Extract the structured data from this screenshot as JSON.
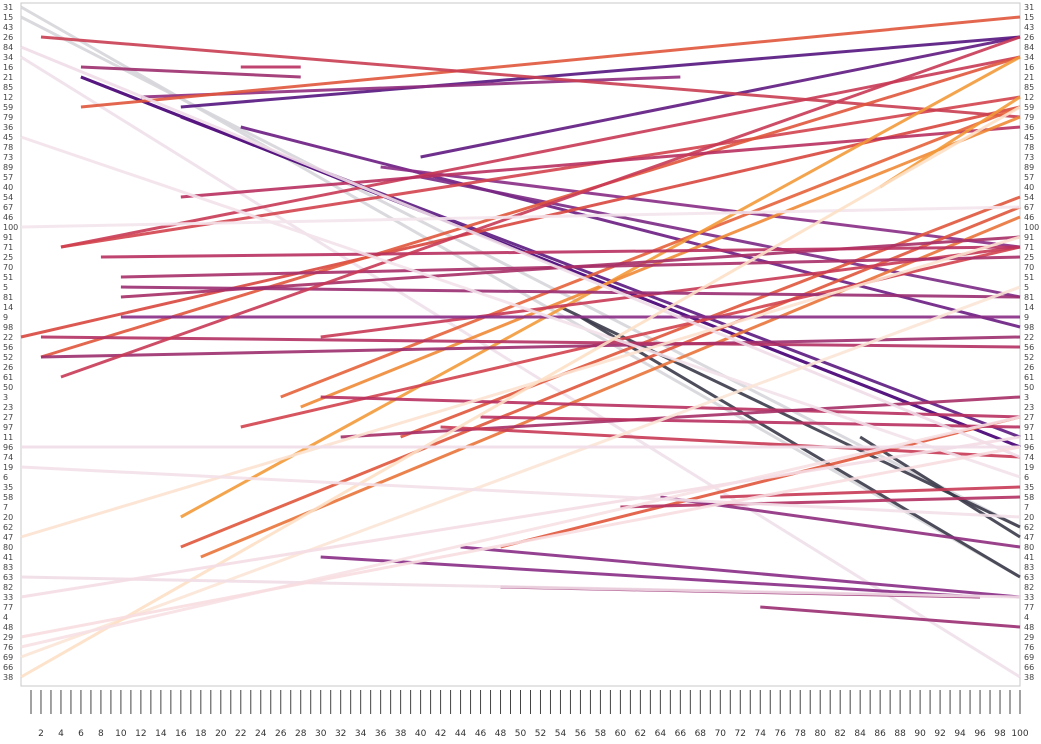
{
  "chart_data": {
    "type": "line",
    "title": "",
    "xlabel": "",
    "ylabel": "",
    "x_ticks_labeled": [
      2,
      4,
      6,
      8,
      10,
      12,
      14,
      16,
      18,
      20,
      22,
      24,
      26,
      28,
      30,
      32,
      34,
      36,
      38,
      40,
      42,
      44,
      46,
      48,
      50,
      52,
      54,
      56,
      58,
      60,
      62,
      64,
      66,
      68,
      70,
      72,
      74,
      76,
      78,
      80,
      82,
      84,
      86,
      88,
      90,
      92,
      94,
      96,
      98,
      100
    ],
    "xlim": [
      0,
      100
    ],
    "y_categories": [
      "31",
      "15",
      "43",
      "26",
      "84",
      "34",
      "16",
      "21",
      "85",
      "12",
      "59",
      "79",
      "36",
      "45",
      "78",
      "73",
      "89",
      "57",
      "40",
      "54",
      "67",
      "46",
      "100",
      "91",
      "71",
      "25",
      "70",
      "51",
      "5",
      "81",
      "14",
      "9",
      "98",
      "22",
      "56",
      "52",
      "26",
      "61",
      "50",
      "3",
      "23",
      "27",
      "97",
      "11",
      "96",
      "74",
      "19",
      "6",
      "35",
      "58",
      "7",
      "20",
      "62",
      "47",
      "80",
      "41",
      "83",
      "63",
      "82",
      "33",
      "77",
      "4",
      "48",
      "29",
      "76",
      "69",
      "66",
      "38"
    ],
    "color_range": [
      "#f4e4ec",
      "#fce2d0",
      "#f39a3a",
      "#e0573c",
      "#b8305f",
      "#8a2c86",
      "#55157f",
      "#3a3a4a",
      "#cfcfd3"
    ],
    "series": [
      {
        "x": [
          0,
          100
        ],
        "y": [
          "31",
          "63"
        ],
        "c": "#d6d6da",
        "w": 3
      },
      {
        "x": [
          0,
          100
        ],
        "y": [
          "15",
          "62"
        ],
        "c": "#d6d6da",
        "w": 3
      },
      {
        "x": [
          0,
          100
        ],
        "y": [
          "34",
          "38"
        ],
        "c": "#efe0ea",
        "w": 3
      },
      {
        "x": [
          6,
          100
        ],
        "y": [
          "21",
          "96"
        ],
        "c": "#55157f",
        "w": 3
      },
      {
        "x": [
          16,
          100
        ],
        "y": [
          "59",
          "26"
        ],
        "c": "#55157f",
        "w": 3
      },
      {
        "x": [
          16,
          100
        ],
        "y": [
          "79",
          "11"
        ],
        "c": "#5b1a80",
        "w": 3
      },
      {
        "x": [
          22,
          100
        ],
        "y": [
          "36",
          "98"
        ],
        "c": "#6a1d82",
        "w": 3
      },
      {
        "x": [
          40,
          100
        ],
        "y": [
          "73",
          "26"
        ],
        "c": "#5e1980",
        "w": 3
      },
      {
        "x": [
          40,
          100
        ],
        "y": [
          "57",
          "81"
        ],
        "c": "#7a2884",
        "w": 3
      },
      {
        "x": [
          36,
          100
        ],
        "y": [
          "89",
          "71"
        ],
        "c": "#8a2c86",
        "w": 3
      },
      {
        "x": [
          54,
          100
        ],
        "y": [
          "14",
          "62"
        ],
        "c": "#3a3a4a",
        "w": 3
      },
      {
        "x": [
          56,
          100
        ],
        "y": [
          "9",
          "63"
        ],
        "c": "#3a3a4a",
        "w": 3
      },
      {
        "x": [
          84,
          100
        ],
        "y": [
          "11",
          "47"
        ],
        "c": "#3a3a4a",
        "w": 3
      },
      {
        "x": [
          6,
          100
        ],
        "y": [
          "21",
          "96"
        ],
        "c": "#55157f",
        "w": 3
      },
      {
        "x": [
          6,
          28
        ],
        "y": [
          "16",
          "21"
        ],
        "c": "#9c2e6e",
        "w": 3
      },
      {
        "x": [
          22,
          28
        ],
        "y": [
          "16",
          "16"
        ],
        "c": "#b8305f",
        "w": 3
      },
      {
        "x": [
          12,
          66
        ],
        "y": [
          "12",
          "21"
        ],
        "c": "#8e2d7e",
        "w": 3
      },
      {
        "x": [
          6,
          100
        ],
        "y": [
          "59",
          "15"
        ],
        "c": "#e0573c",
        "w": 3
      },
      {
        "x": [
          4,
          100
        ],
        "y": [
          "71",
          "34"
        ],
        "c": "#c83a55",
        "w": 3
      },
      {
        "x": [
          4,
          100
        ],
        "y": [
          "71",
          "12"
        ],
        "c": "#d2434c",
        "w": 3
      },
      {
        "x": [
          0,
          100
        ],
        "y": [
          "22",
          "59"
        ],
        "c": "#d8473f",
        "w": 3
      },
      {
        "x": [
          2,
          100
        ],
        "y": [
          "26",
          "79"
        ],
        "c": "#c93e52",
        "w": 3
      },
      {
        "x": [
          2,
          100
        ],
        "y": [
          "52",
          "34"
        ],
        "c": "#e0573c",
        "w": 3
      },
      {
        "x": [
          16,
          100
        ],
        "y": [
          "54",
          "36"
        ],
        "c": "#b8305f",
        "w": 3
      },
      {
        "x": [
          26,
          100
        ],
        "y": [
          "3",
          "59"
        ],
        "c": "#e5633b",
        "w": 3
      },
      {
        "x": [
          16,
          100
        ],
        "y": [
          "20",
          "34"
        ],
        "c": "#f39a3a",
        "w": 3
      },
      {
        "x": [
          28,
          100
        ],
        "y": [
          "23",
          "79"
        ],
        "c": "#f08a36",
        "w": 3
      },
      {
        "x": [
          86,
          100
        ],
        "y": [
          "40",
          "12"
        ],
        "c": "#f39a3a",
        "w": 3
      },
      {
        "x": [
          38,
          100
        ],
        "y": [
          "11",
          "54"
        ],
        "c": "#e0573c",
        "w": 3
      },
      {
        "x": [
          16,
          100
        ],
        "y": [
          "80",
          "67"
        ],
        "c": "#e0573c",
        "w": 3
      },
      {
        "x": [
          18,
          100
        ],
        "y": [
          "41",
          "46"
        ],
        "c": "#e9743a",
        "w": 3
      },
      {
        "x": [
          48,
          100
        ],
        "y": [
          "80",
          "27"
        ],
        "c": "#e0573c",
        "w": 3
      },
      {
        "x": [
          22,
          100
        ],
        "y": [
          "97",
          "71"
        ],
        "c": "#d2434c",
        "w": 3
      },
      {
        "x": [
          30,
          100
        ],
        "y": [
          "22",
          "71"
        ],
        "c": "#c83a55",
        "w": 3
      },
      {
        "x": [
          10,
          100
        ],
        "y": [
          "81",
          "91"
        ],
        "c": "#a62f67",
        "w": 3
      },
      {
        "x": [
          8,
          100
        ],
        "y": [
          "25",
          "71"
        ],
        "c": "#b8305f",
        "w": 3
      },
      {
        "x": [
          10,
          100
        ],
        "y": [
          "51",
          "25"
        ],
        "c": "#a72f68",
        "w": 3
      },
      {
        "x": [
          10,
          100
        ],
        "y": [
          "5",
          "81"
        ],
        "c": "#9a2d72",
        "w": 3
      },
      {
        "x": [
          10,
          100
        ],
        "y": [
          "9",
          "9"
        ],
        "c": "#8a2c86",
        "w": 3
      },
      {
        "x": [
          2,
          100
        ],
        "y": [
          "52",
          "22"
        ],
        "c": "#9c2e6e",
        "w": 3
      },
      {
        "x": [
          2,
          100
        ],
        "y": [
          "22",
          "56"
        ],
        "c": "#b23163",
        "w": 3
      },
      {
        "x": [
          4,
          100
        ],
        "y": [
          "61",
          "26"
        ],
        "c": "#c83a55",
        "w": 3
      },
      {
        "x": [
          30,
          100
        ],
        "y": [
          "3",
          "27"
        ],
        "c": "#b8305f",
        "w": 3
      },
      {
        "x": [
          32,
          100
        ],
        "y": [
          "11",
          "3"
        ],
        "c": "#a62f67",
        "w": 3
      },
      {
        "x": [
          42,
          100
        ],
        "y": [
          "97",
          "74"
        ],
        "c": "#c83a55",
        "w": 3
      },
      {
        "x": [
          46,
          100
        ],
        "y": [
          "27",
          "97"
        ],
        "c": "#b8305f",
        "w": 3
      },
      {
        "x": [
          70,
          100
        ],
        "y": [
          "58",
          "35"
        ],
        "c": "#c83a55",
        "w": 3
      },
      {
        "x": [
          60,
          100
        ],
        "y": [
          "7",
          "58"
        ],
        "c": "#b23163",
        "w": 3
      },
      {
        "x": [
          64,
          100
        ],
        "y": [
          "58",
          "80"
        ],
        "c": "#8e2d7e",
        "w": 3
      },
      {
        "x": [
          44,
          100
        ],
        "y": [
          "80",
          "33"
        ],
        "c": "#8a2c86",
        "w": 3
      },
      {
        "x": [
          30,
          96
        ],
        "y": [
          "41",
          "33"
        ],
        "c": "#8a2c86",
        "w": 3
      },
      {
        "x": [
          48,
          96
        ],
        "y": [
          "82",
          "33"
        ],
        "c": "#9a2d72",
        "w": 3
      },
      {
        "x": [
          74,
          100
        ],
        "y": [
          "77",
          "48"
        ],
        "c": "#9a2d72",
        "w": 3
      },
      {
        "x": [
          0,
          100
        ],
        "y": [
          "84",
          "74"
        ],
        "c": "#efdde8",
        "w": 3
      },
      {
        "x": [
          0,
          100
        ],
        "y": [
          "45",
          "6"
        ],
        "c": "#f3e2ea",
        "w": 3
      },
      {
        "x": [
          0,
          100
        ],
        "y": [
          "100",
          "67"
        ],
        "c": "#f4e4ec",
        "w": 3
      },
      {
        "x": [
          0,
          100
        ],
        "y": [
          "47",
          "91"
        ],
        "c": "#fce2d0",
        "w": 3
      },
      {
        "x": [
          0,
          100
        ],
        "y": [
          "69",
          "5"
        ],
        "c": "#fbe6d6",
        "w": 3
      },
      {
        "x": [
          0,
          100
        ],
        "y": [
          "38",
          "59"
        ],
        "c": "#fde0c5",
        "w": 3
      },
      {
        "x": [
          0,
          100
        ],
        "y": [
          "76",
          "27"
        ],
        "c": "#f7e0e4",
        "w": 3
      },
      {
        "x": [
          0,
          100
        ],
        "y": [
          "63",
          "33"
        ],
        "c": "#f1dde6",
        "w": 3
      },
      {
        "x": [
          0,
          100
        ],
        "y": [
          "33",
          "11"
        ],
        "c": "#f4dde4",
        "w": 3
      },
      {
        "x": [
          0,
          100
        ],
        "y": [
          "19",
          "20"
        ],
        "c": "#f3e0e8",
        "w": 3
      },
      {
        "x": [
          0,
          100
        ],
        "y": [
          "96",
          "96"
        ],
        "c": "#efdde8",
        "w": 3
      },
      {
        "x": [
          0,
          100
        ],
        "y": [
          "29",
          "96"
        ],
        "c": "#f7dde0",
        "w": 3
      }
    ]
  }
}
